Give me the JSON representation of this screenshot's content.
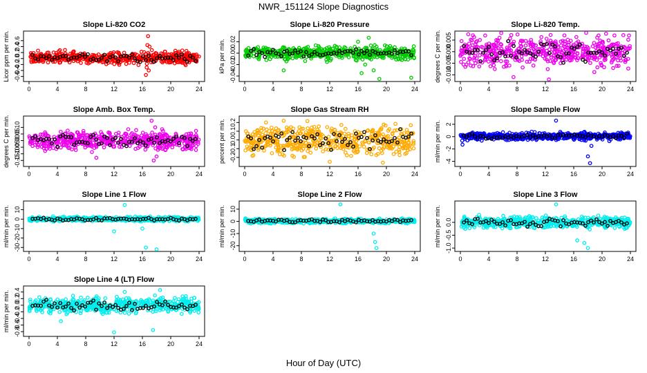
{
  "title": "NWR_151124  Slope Diagnostics",
  "xlabel": "Hour of Day (UTC)",
  "chart_data": [
    {
      "type": "scatter",
      "title": "Slope Li-820 CO2",
      "ylabel": "Licor ppm per min.",
      "color": "#ff0000",
      "xlim": [
        0,
        24
      ],
      "xticks": [
        0,
        4,
        8,
        12,
        16,
        20,
        24
      ],
      "ylim": [
        -0.7,
        0.85
      ],
      "yticks": [
        -0.6,
        -0.4,
        -0.2,
        0.0,
        0.2,
        0.4,
        0.6
      ],
      "yticklabels": [
        "-0.6",
        "-0.4",
        "-0.2",
        "0.0",
        "0.2",
        "0.4",
        "0.6"
      ],
      "band": [
        -0.15,
        0.2
      ],
      "outliers": [
        [
          16.5,
          -0.55
        ],
        [
          16.8,
          0.75
        ],
        [
          16.6,
          -0.3
        ],
        [
          16.9,
          -0.4
        ],
        [
          16.7,
          0.45
        ],
        [
          17.0,
          0.4
        ]
      ]
    },
    {
      "type": "scatter",
      "title": "Slope Li-820 Pressure",
      "ylabel": "kPa per min.",
      "color": "#00cc00",
      "xlim": [
        0,
        24
      ],
      "xticks": [
        0,
        4,
        8,
        12,
        16,
        20,
        24
      ],
      "ylim": [
        -0.046,
        0.035
      ],
      "yticks": [
        -0.04,
        -0.02,
        0.0,
        0.02
      ],
      "yticklabels": [
        "-0.04",
        "-0.02",
        "0.00",
        "0.02"
      ],
      "band": [
        -0.01,
        0.01
      ],
      "outliers": [
        [
          5.5,
          -0.03
        ],
        [
          16.5,
          -0.035
        ],
        [
          17.5,
          0.027
        ],
        [
          18.2,
          -0.03
        ],
        [
          19.0,
          -0.045
        ],
        [
          23.5,
          -0.043
        ],
        [
          16.0,
          0.02
        ],
        [
          17.0,
          -0.02
        ]
      ]
    },
    {
      "type": "scatter",
      "title": "Slope Li-820 Temp.",
      "ylabel": "degrees C per min.",
      "color": "#ee00ee",
      "xlim": [
        0,
        24
      ],
      "xticks": [
        0,
        4,
        8,
        12,
        16,
        20,
        24
      ],
      "ylim": [
        -0.012,
        0.008
      ],
      "yticks": [
        -0.01,
        -0.005,
        0.0,
        0.005
      ],
      "yticklabels": [
        "-0.010",
        "-0.005",
        "0.000",
        "0.005"
      ],
      "band": [
        -0.006,
        0.006
      ],
      "outliers": [
        [
          7.5,
          -0.011
        ],
        [
          12.5,
          -0.012
        ],
        [
          3.5,
          0.007
        ],
        [
          19.5,
          0.007
        ],
        [
          23.8,
          0.007
        ]
      ]
    },
    {
      "type": "scatter",
      "title": "Slope Amb. Box Temp.",
      "ylabel": "degrees C per min.",
      "color": "#ee00ee",
      "xlim": [
        0,
        24
      ],
      "xticks": [
        0,
        4,
        8,
        12,
        16,
        20,
        24
      ],
      "ylim": [
        -0.18,
        0.17
      ],
      "yticks": [
        -0.15,
        -0.1,
        -0.05,
        0.0,
        0.05,
        0.1
      ],
      "yticklabels": [
        "-0.15",
        "-0.10",
        "-0.05",
        "0.00",
        "0.05",
        "0.10"
      ],
      "band": [
        -0.06,
        0.06
      ],
      "outliers": [
        [
          17.3,
          0.15
        ],
        [
          17.6,
          -0.15
        ],
        [
          18.0,
          -0.12
        ],
        [
          17.8,
          0.1
        ],
        [
          9.5,
          -0.13
        ]
      ]
    },
    {
      "type": "scatter",
      "title": "Slope Gas Stream RH",
      "ylabel": "percent per min.",
      "color": "#ffaa00",
      "xlim": [
        0,
        24
      ],
      "xticks": [
        0,
        4,
        8,
        12,
        16,
        20,
        24
      ],
      "ylim": [
        -0.28,
        0.25
      ],
      "yticks": [
        -0.2,
        -0.1,
        0.0,
        0.1,
        0.2
      ],
      "yticklabels": [
        "-0.2",
        "-0.1",
        "0.0",
        "0.1",
        "0.2"
      ],
      "band": [
        -0.15,
        0.15
      ],
      "outliers": [
        [
          5.5,
          0.22
        ],
        [
          19.5,
          -0.26
        ],
        [
          12.0,
          -0.25
        ],
        [
          3.0,
          0.2
        ]
      ]
    },
    {
      "type": "scatter",
      "title": "Slope Sample Flow",
      "ylabel": "ml/min per min.",
      "color": "#0000ff",
      "xlim": [
        0,
        24
      ],
      "xticks": [
        0,
        4,
        8,
        12,
        16,
        20,
        24
      ],
      "ylim": [
        -4.5,
        3.0
      ],
      "yticks": [
        -4,
        -2,
        0,
        2
      ],
      "yticklabels": [
        "-4",
        "-2",
        "0",
        "2"
      ],
      "band": [
        -0.5,
        0.6
      ],
      "outliers": [
        [
          13.5,
          2.6
        ],
        [
          18.0,
          -3.2
        ],
        [
          18.3,
          -4.3
        ],
        [
          0.3,
          -1.3
        ],
        [
          18.5,
          -1.5
        ]
      ]
    },
    {
      "type": "scatter",
      "title": "Slope Line 1 Flow",
      "ylabel": "ml/min per min.",
      "color": "#00eeee",
      "xlim": [
        0,
        24
      ],
      "xticks": [
        0,
        4,
        8,
        12,
        16,
        20,
        24
      ],
      "ylim": [
        -32,
        17
      ],
      "yticks": [
        -30,
        -20,
        -10,
        0,
        10
      ],
      "yticklabels": [
        "-30",
        "-20",
        "-10",
        "0",
        "10"
      ],
      "band": [
        -2,
        2
      ],
      "outliers": [
        [
          13.5,
          15
        ],
        [
          12.0,
          -13
        ],
        [
          16.5,
          -30
        ],
        [
          18.0,
          -32
        ],
        [
          16.0,
          -10
        ]
      ]
    },
    {
      "type": "scatter",
      "title": "Slope Line 2 Flow",
      "ylabel": "ml/min per min.",
      "color": "#00eeee",
      "xlim": [
        0,
        24
      ],
      "xticks": [
        0,
        4,
        8,
        12,
        16,
        20,
        24
      ],
      "ylim": [
        -23,
        15
      ],
      "yticks": [
        -20,
        -10,
        0,
        10
      ],
      "yticklabels": [
        "-20",
        "-10",
        "0",
        "10"
      ],
      "band": [
        -1.5,
        2
      ],
      "outliers": [
        [
          13.5,
          14
        ],
        [
          18.2,
          -10
        ],
        [
          18.4,
          -17
        ],
        [
          18.6,
          -22
        ]
      ]
    },
    {
      "type": "scatter",
      "title": "Slope Line 3 Flow",
      "ylabel": "ml/min per min.",
      "color": "#00eeee",
      "xlim": [
        0,
        24
      ],
      "xticks": [
        0,
        4,
        8,
        12,
        16,
        20,
        24
      ],
      "ylim": [
        -1.05,
        0.75
      ],
      "yticks": [
        -1.0,
        -0.5,
        0.0
      ],
      "yticklabels": [
        "-1.0",
        "-0.5",
        "0.0"
      ],
      "band": [
        -0.2,
        0.2
      ],
      "outliers": [
        [
          13.5,
          0.7
        ],
        [
          16.5,
          -0.7
        ],
        [
          17.5,
          -0.8
        ],
        [
          18.0,
          -1.0
        ]
      ]
    },
    {
      "type": "scatter",
      "title": "Slope Line 4 (LT) Flow",
      "ylabel": "ml/min per min.",
      "color": "#00eeee",
      "xlim": [
        0,
        24
      ],
      "xticks": [
        0,
        4,
        8,
        12,
        16,
        20,
        24
      ],
      "ylim": [
        -0.88,
        0.52
      ],
      "yticks": [
        -0.8,
        -0.6,
        -0.4,
        -0.2,
        0.0,
        0.2,
        0.4
      ],
      "yticklabels": [
        "-0.8",
        "-0.6",
        "-0.4",
        "-0.2",
        "0.0",
        "0.2",
        "0.4"
      ],
      "band": [
        -0.2,
        0.2
      ],
      "outliers": [
        [
          12.0,
          -0.82
        ],
        [
          18.5,
          0.46
        ],
        [
          17.5,
          -0.75
        ],
        [
          4.5,
          -0.48
        ],
        [
          13.5,
          0.4
        ]
      ]
    }
  ]
}
